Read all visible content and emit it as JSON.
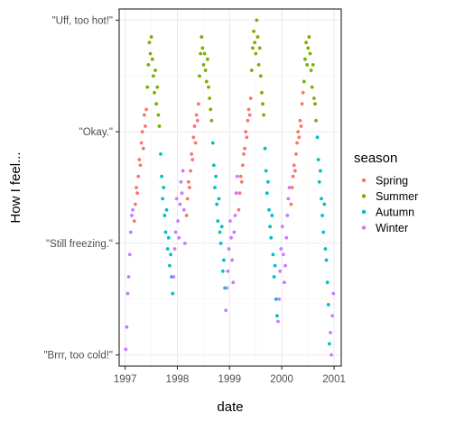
{
  "chart_data": {
    "type": "scatter",
    "xlabel": "date",
    "ylabel": "How I feel...",
    "x_ticks": [
      "1997",
      "1998",
      "1999",
      "2000",
      "2001"
    ],
    "xlim": [
      "1997-01-01",
      "2001-01-01"
    ],
    "y_ticks": [
      "Brrr, too cold!",
      "Still freezing.",
      "Okay.",
      "Uff, too hot!"
    ],
    "y_tick_labels": [
      "\"Brrr, too cold!\"",
      "\"Still freezing.\"",
      "\"Okay.\"",
      "\"Uff, too hot!\""
    ],
    "y_tick_values": [
      -10,
      10,
      30,
      50
    ],
    "ylim": [
      -12,
      52
    ],
    "y_units": "temperature",
    "grid": true,
    "legend": {
      "title": "season",
      "position": "right"
    },
    "series": [
      {
        "name": "Spring",
        "color": "#F8766D",
        "x": [
          "1997-03-06",
          "1997-03-13",
          "1997-03-20",
          "1997-03-27",
          "1997-04-03",
          "1997-04-10",
          "1997-04-17",
          "1997-04-24",
          "1997-05-01",
          "1997-05-08",
          "1997-05-15",
          "1997-05-22",
          "1997-05-29",
          "1998-03-06",
          "1998-03-13",
          "1998-03-20",
          "1998-03-27",
          "1998-04-03",
          "1998-04-10",
          "1998-04-17",
          "1998-04-24",
          "1998-05-01",
          "1998-05-08",
          "1998-05-15",
          "1998-05-22",
          "1998-05-29",
          "1999-03-06",
          "1999-03-13",
          "1999-03-20",
          "1999-03-27",
          "1999-04-03",
          "1999-04-10",
          "1999-04-17",
          "1999-04-24",
          "1999-05-01",
          "1999-05-08",
          "1999-05-15",
          "1999-05-22",
          "1999-05-29",
          "2000-03-06",
          "2000-03-13",
          "2000-03-20",
          "2000-03-27",
          "2000-04-03",
          "2000-04-10",
          "2000-04-17",
          "2000-04-24",
          "2000-05-01",
          "2000-05-08",
          "2000-05-15",
          "2000-05-22",
          "2000-05-29"
        ],
        "y": [
          14,
          17,
          20,
          19,
          22,
          25,
          24,
          28,
          30,
          27,
          33,
          31,
          34,
          15,
          18,
          21,
          20,
          23,
          26,
          25,
          29,
          31,
          28,
          33,
          32,
          35,
          16,
          19,
          22,
          21,
          24,
          26,
          27,
          30,
          29,
          32,
          34,
          33,
          36,
          17,
          20,
          22,
          24,
          23,
          26,
          28,
          30,
          29,
          32,
          31,
          35,
          37
        ]
      },
      {
        "name": "Summer",
        "color": "#7CAE00",
        "x": [
          "1997-06-05",
          "1997-06-12",
          "1997-06-19",
          "1997-06-26",
          "1997-07-03",
          "1997-07-10",
          "1997-07-17",
          "1997-07-24",
          "1997-07-31",
          "1997-08-07",
          "1997-08-14",
          "1997-08-21",
          "1997-08-28",
          "1998-06-05",
          "1998-06-12",
          "1998-06-19",
          "1998-06-26",
          "1998-07-03",
          "1998-07-10",
          "1998-07-17",
          "1998-07-24",
          "1998-07-31",
          "1998-08-07",
          "1998-08-14",
          "1998-08-21",
          "1998-08-28",
          "1999-06-05",
          "1999-06-12",
          "1999-06-19",
          "1999-06-26",
          "1999-07-03",
          "1999-07-10",
          "1999-07-17",
          "1999-07-24",
          "1999-07-31",
          "1999-08-07",
          "1999-08-14",
          "1999-08-21",
          "1999-08-28",
          "2000-06-05",
          "2000-06-12",
          "2000-06-19",
          "2000-06-26",
          "2000-07-03",
          "2000-07-10",
          "2000-07-17",
          "2000-07-24",
          "2000-07-31",
          "2000-08-07",
          "2000-08-14",
          "2000-08-21",
          "2000-08-28"
        ],
        "y": [
          38,
          42,
          46,
          44,
          47,
          43,
          40,
          37,
          41,
          35,
          38,
          33,
          31,
          40,
          44,
          47,
          45,
          42,
          44,
          41,
          39,
          43,
          38,
          36,
          34,
          32,
          41,
          45,
          48,
          46,
          44,
          50,
          47,
          42,
          45,
          40,
          37,
          35,
          33,
          39,
          43,
          46,
          42,
          45,
          47,
          44,
          41,
          38,
          42,
          36,
          35,
          32
        ]
      },
      {
        "name": "Autumn",
        "color": "#00BFC4",
        "x": [
          "1997-09-06",
          "1997-09-13",
          "1997-09-20",
          "1997-09-27",
          "1997-10-04",
          "1997-10-11",
          "1997-10-18",
          "1997-10-25",
          "1997-11-01",
          "1997-11-08",
          "1997-11-15",
          "1997-11-22",
          "1997-11-29",
          "1998-09-06",
          "1998-09-13",
          "1998-09-20",
          "1998-09-27",
          "1998-10-04",
          "1998-10-11",
          "1998-10-18",
          "1998-10-25",
          "1998-11-01",
          "1998-11-08",
          "1998-11-15",
          "1998-11-22",
          "1998-11-29",
          "1999-09-06",
          "1999-09-13",
          "1999-09-20",
          "1999-09-27",
          "1999-10-04",
          "1999-10-11",
          "1999-10-18",
          "1999-10-25",
          "1999-11-01",
          "1999-11-08",
          "1999-11-15",
          "1999-11-22",
          "1999-11-29",
          "2000-09-06",
          "2000-09-13",
          "2000-09-20",
          "2000-09-27",
          "2000-10-04",
          "2000-10-11",
          "2000-10-18",
          "2000-10-25",
          "2000-11-01",
          "2000-11-08",
          "2000-11-15",
          "2000-11-22",
          "2000-11-29"
        ],
        "y": [
          26,
          22,
          18,
          20,
          15,
          12,
          16,
          9,
          11,
          6,
          8,
          4,
          1,
          28,
          24,
          20,
          22,
          17,
          14,
          18,
          12,
          10,
          13,
          5,
          7,
          2,
          27,
          23,
          19,
          21,
          16,
          13,
          11,
          15,
          8,
          4,
          6,
          0,
          -3,
          29,
          25,
          21,
          23,
          18,
          15,
          12,
          17,
          9,
          7,
          3,
          -1,
          -8
        ]
      },
      {
        "name": "Winter",
        "color": "#C77CFF",
        "x": [
          "1997-01-05",
          "1997-01-12",
          "1997-01-19",
          "1997-01-26",
          "1997-02-02",
          "1997-02-09",
          "1997-02-16",
          "1997-02-23",
          "1997-12-06",
          "1997-12-13",
          "1997-12-20",
          "1997-12-27",
          "1998-01-05",
          "1998-01-12",
          "1998-01-19",
          "1998-01-26",
          "1998-02-02",
          "1998-02-09",
          "1998-02-16",
          "1998-02-23",
          "1998-12-06",
          "1998-12-13",
          "1998-12-20",
          "1998-12-27",
          "1999-01-05",
          "1999-01-12",
          "1999-01-19",
          "1999-01-26",
          "1999-02-02",
          "1999-02-09",
          "1999-02-16",
          "1999-02-23",
          "1999-12-06",
          "1999-12-13",
          "1999-12-20",
          "1999-12-27",
          "2000-01-05",
          "2000-01-12",
          "2000-01-19",
          "2000-01-26",
          "2000-02-02",
          "2000-02-09",
          "2000-02-16",
          "2000-02-23",
          "2000-12-06",
          "2000-12-13",
          "2000-12-20",
          "2000-12-27"
        ],
        "y": [
          -9,
          -5,
          1,
          4,
          8,
          12,
          15,
          16,
          4,
          9,
          12,
          18,
          14,
          11,
          17,
          21,
          19,
          23,
          16,
          10,
          -2,
          2,
          5,
          9,
          14,
          11,
          7,
          3,
          12,
          15,
          19,
          22,
          -4,
          0,
          5,
          9,
          13,
          8,
          3,
          6,
          11,
          15,
          18,
          20,
          -6,
          -10,
          -3,
          1
        ]
      }
    ]
  }
}
